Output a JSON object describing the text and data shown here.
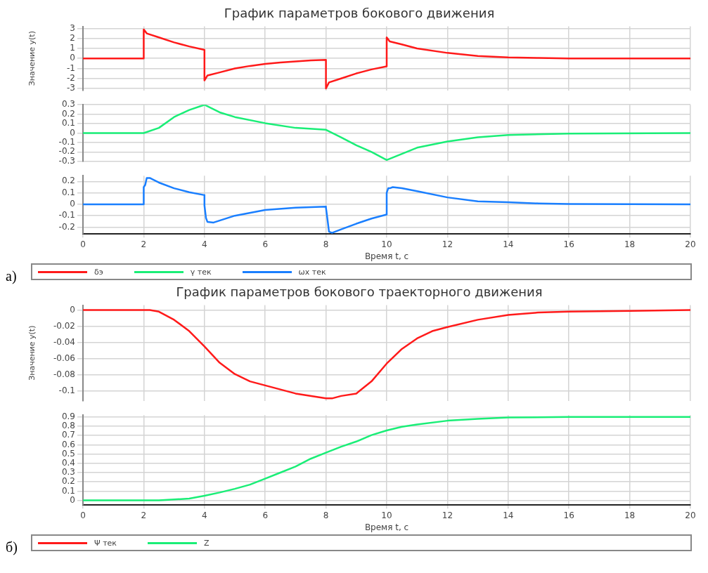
{
  "chart_data": [
    {
      "type": "line",
      "title": "График параметров бокового движения",
      "ylabel": "Значение y(t)",
      "legend": "bottom",
      "grid": true,
      "marker": "none",
      "line_style": "solid",
      "tick_labels": "y",
      "xlim": [
        0,
        20
      ],
      "xticks": [
        0,
        2,
        4,
        6,
        8,
        10,
        12,
        14,
        16,
        18,
        20
      ],
      "ylim": [
        -3.2,
        3.2
      ],
      "yticks": [
        -3,
        -2,
        -1,
        0,
        1,
        2,
        3
      ],
      "series": [
        {
          "name": "δэ",
          "color": "#ff1a1a",
          "x": [
            0,
            2,
            2,
            2.1,
            2.5,
            3,
            3.5,
            4,
            4,
            4.1,
            4.5,
            5,
            5.5,
            6,
            6.5,
            7,
            7.5,
            8,
            8,
            8.1,
            8.5,
            9,
            9.5,
            10,
            10,
            10.1,
            10.5,
            11,
            12,
            13,
            14,
            15,
            16,
            20
          ],
          "values": [
            0,
            0,
            2.9,
            2.5,
            2.1,
            1.6,
            1.2,
            0.85,
            -2.2,
            -1.7,
            -1.4,
            -1.0,
            -0.75,
            -0.55,
            -0.4,
            -0.3,
            -0.2,
            -0.15,
            -3.0,
            -2.4,
            -2.0,
            -1.5,
            -1.1,
            -0.8,
            2.1,
            1.7,
            1.4,
            1.0,
            0.55,
            0.25,
            0.1,
            0.05,
            0,
            0
          ]
        }
      ]
    },
    {
      "type": "line",
      "legend": "bottom",
      "grid": true,
      "marker": "none",
      "line_style": "solid",
      "tick_labels": "y",
      "xlim": [
        0,
        20
      ],
      "xticks": [
        0,
        2,
        4,
        6,
        8,
        10,
        12,
        14,
        16,
        18,
        20
      ],
      "ylim": [
        -0.3,
        0.3
      ],
      "yticks": [
        -0.3,
        -0.2,
        -0.1,
        0,
        0.1,
        0.2,
        0.3
      ],
      "series": [
        {
          "name": "γ тек",
          "color": "#1aee77",
          "x": [
            0,
            2,
            2.5,
            3,
            3.5,
            4,
            4.5,
            5,
            6,
            7,
            8,
            8.5,
            9,
            9.5,
            10,
            10.5,
            11,
            12,
            13,
            14,
            16,
            20
          ],
          "values": [
            0,
            0,
            0.055,
            0.17,
            0.245,
            0.3,
            0.22,
            0.17,
            0.105,
            0.055,
            0.035,
            -0.045,
            -0.13,
            -0.2,
            -0.285,
            -0.22,
            -0.155,
            -0.09,
            -0.045,
            -0.02,
            -0.005,
            0
          ]
        }
      ]
    },
    {
      "type": "line",
      "xlabel": "Время t, с",
      "annotations": [
        "a)"
      ],
      "legend": "bottom",
      "grid": true,
      "marker": "none",
      "line_style": "solid",
      "xlim": [
        0,
        20
      ],
      "xticks": [
        0,
        2,
        4,
        6,
        8,
        10,
        12,
        14,
        16,
        18,
        20
      ],
      "ylim": [
        -0.26,
        0.25
      ],
      "yticks": [
        -0.2,
        -0.1,
        0,
        0.1,
        0.2
      ],
      "series": [
        {
          "name": "ωx тек",
          "color": "#1a7fff",
          "x": [
            0,
            2,
            2,
            2.05,
            2.1,
            2.2,
            2.5,
            3,
            3.5,
            4,
            4,
            4.05,
            4.1,
            4.3,
            5,
            6,
            7,
            8,
            8,
            8.05,
            8.1,
            8.2,
            8.5,
            9,
            9.5,
            10,
            10,
            10.05,
            10.1,
            10.2,
            10.5,
            11,
            12,
            13,
            14,
            15,
            16,
            20
          ],
          "values": [
            0,
            0,
            0.15,
            0.17,
            0.23,
            0.23,
            0.19,
            0.14,
            0.105,
            0.08,
            -0.01,
            -0.12,
            -0.155,
            -0.16,
            -0.1,
            -0.05,
            -0.03,
            -0.02,
            -0.03,
            -0.13,
            -0.24,
            -0.25,
            -0.22,
            -0.17,
            -0.125,
            -0.09,
            0.1,
            0.14,
            0.14,
            0.15,
            0.14,
            0.115,
            0.06,
            0.026,
            0.017,
            0.007,
            0.002,
            0
          ]
        }
      ]
    },
    {
      "type": "line",
      "title": "График параметров бокового траекторного движения",
      "ylabel": "Значение y(t)",
      "legend": "bottom",
      "grid": true,
      "marker": "none",
      "line_style": "solid",
      "tick_labels": "y",
      "xlim": [
        0,
        20
      ],
      "xticks": [
        0,
        2,
        4,
        6,
        8,
        10,
        12,
        14,
        16,
        18,
        20
      ],
      "ylim": [
        -0.112,
        0.006
      ],
      "yticks": [
        -0.1,
        -0.08,
        -0.06,
        -0.04,
        -0.02,
        0
      ],
      "series": [
        {
          "name": "Ψ тек",
          "color": "#ff1a1a",
          "x": [
            0,
            2,
            2.2,
            2.5,
            3,
            3.5,
            4,
            4.5,
            5,
            5.5,
            6,
            7,
            8,
            8.2,
            8.5,
            9,
            9.5,
            10,
            10.5,
            11,
            11.5,
            12,
            13,
            14,
            15,
            16,
            18,
            20
          ],
          "values": [
            0,
            0,
            0,
            -0.002,
            -0.012,
            -0.026,
            -0.045,
            -0.065,
            -0.079,
            -0.088,
            -0.093,
            -0.103,
            -0.109,
            -0.109,
            -0.106,
            -0.103,
            -0.088,
            -0.066,
            -0.048,
            -0.035,
            -0.026,
            -0.021,
            -0.012,
            -0.006,
            -0.003,
            -0.002,
            -0.001,
            0
          ]
        }
      ]
    },
    {
      "type": "line",
      "xlabel": "Время t, с",
      "annotations": [
        "б)"
      ],
      "legend": "bottom",
      "grid": true,
      "marker": "none",
      "line_style": "solid",
      "xlim": [
        0,
        20
      ],
      "xticks": [
        0,
        2,
        4,
        6,
        8,
        10,
        12,
        14,
        16,
        18,
        20
      ],
      "ylim": [
        -0.05,
        0.92
      ],
      "yticks": [
        0,
        0.1,
        0.2,
        0.3,
        0.4,
        0.5,
        0.6,
        0.7,
        0.8,
        0.9
      ],
      "series": [
        {
          "name": "Z",
          "color": "#1aee77",
          "x": [
            0,
            2,
            2.5,
            3,
            3.5,
            4,
            4.5,
            5,
            5.5,
            6,
            6.5,
            7,
            7.5,
            8,
            8.5,
            9,
            9.5,
            10,
            10.5,
            11,
            12,
            13,
            14,
            16,
            20
          ],
          "values": [
            0,
            0,
            0,
            0.01,
            0.02,
            0.05,
            0.085,
            0.125,
            0.17,
            0.235,
            0.3,
            0.365,
            0.45,
            0.515,
            0.58,
            0.635,
            0.705,
            0.755,
            0.795,
            0.82,
            0.86,
            0.88,
            0.895,
            0.9,
            0.9
          ]
        }
      ]
    }
  ]
}
